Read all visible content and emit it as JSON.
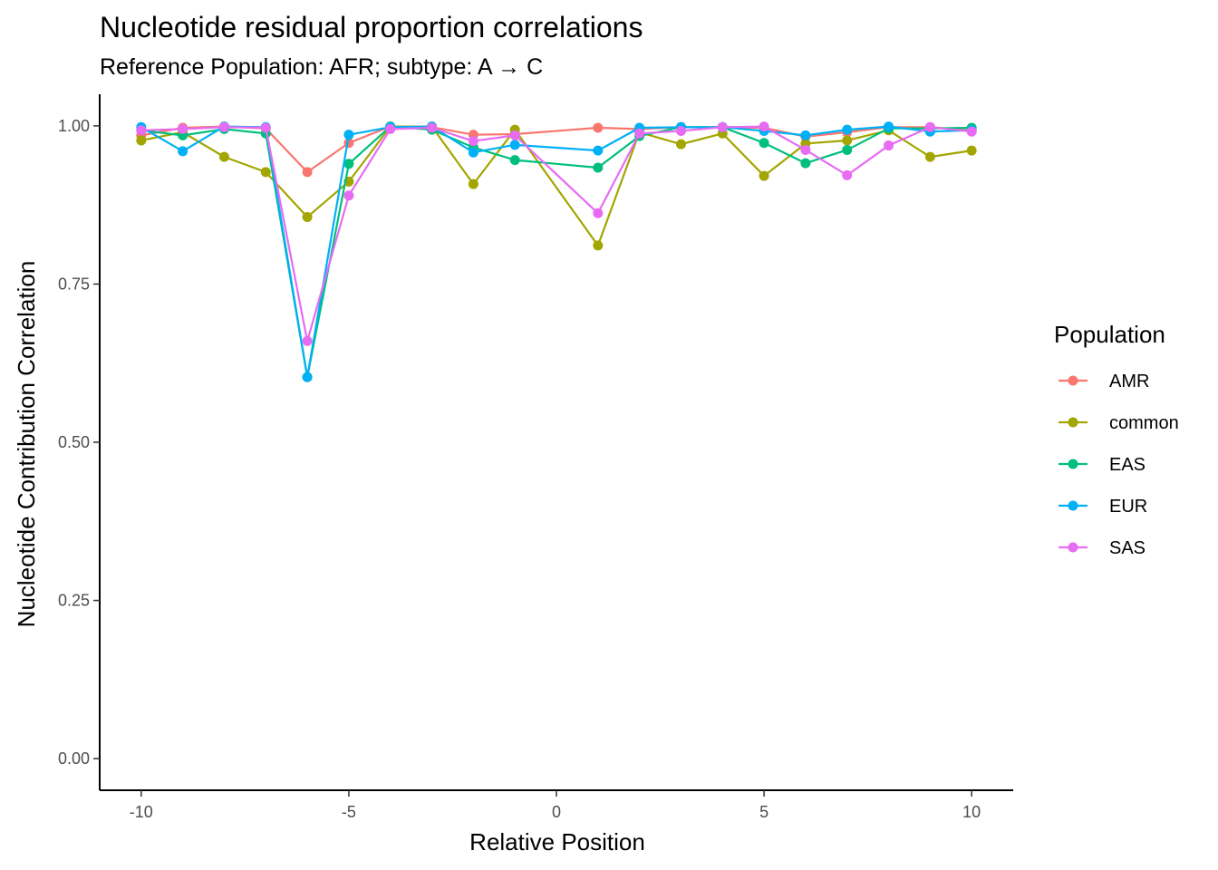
{
  "chart_data": {
    "type": "line",
    "title": "Nucleotide residual proportion correlations",
    "subtitle": "Reference Population: AFR; subtype: A → C",
    "xlabel": "Relative Position",
    "ylabel": "Nucleotide Contribution Correlation",
    "xlim": [
      -11,
      11
    ],
    "ylim": [
      -0.05,
      1.05
    ],
    "x_ticks": [
      -10,
      -5,
      0,
      5,
      10
    ],
    "x_tick_labels": [
      "-10",
      "-5",
      "0",
      "5",
      "10"
    ],
    "y_ticks": [
      0,
      0.25,
      0.5,
      0.75,
      1.0
    ],
    "y_tick_labels": [
      "0.00",
      "0.25",
      "0.50",
      "0.75",
      "1.00"
    ],
    "grid": false,
    "legend": {
      "title": "Population",
      "position": "right"
    },
    "x": [
      -10,
      -9,
      -8,
      -7,
      -6,
      -5,
      -4,
      -3,
      -2,
      -1,
      1,
      2,
      3,
      4,
      5,
      6,
      7,
      8,
      9,
      10
    ],
    "series": [
      {
        "name": "AMR",
        "color": "#F8766D",
        "values": [
          0.985,
          0.997,
          0.999,
          0.996,
          0.927,
          0.973,
          0.999,
          0.998,
          0.986,
          0.987,
          0.997,
          0.995,
          0.998,
          0.998,
          0.997,
          0.983,
          0.99,
          0.998,
          0.998,
          0.993
        ]
      },
      {
        "name": "common",
        "color": "#A3A500",
        "values": [
          0.977,
          0.99,
          0.951,
          0.927,
          0.856,
          0.912,
          0.999,
          0.999,
          0.908,
          0.994,
          0.811,
          0.99,
          0.971,
          0.988,
          0.921,
          0.972,
          0.977,
          0.993,
          0.951,
          0.961
        ]
      },
      {
        "name": "EAS",
        "color": "#00BF7D",
        "values": [
          0.993,
          0.985,
          0.995,
          0.988,
          0.603,
          0.94,
          0.999,
          0.994,
          0.966,
          0.946,
          0.934,
          0.984,
          0.998,
          0.998,
          0.973,
          0.941,
          0.962,
          0.996,
          0.996,
          0.997
        ]
      },
      {
        "name": "EUR",
        "color": "#00B0F6",
        "values": [
          0.998,
          0.96,
          0.999,
          0.998,
          0.603,
          0.986,
          0.998,
          0.999,
          0.958,
          0.97,
          0.961,
          0.997,
          0.998,
          0.998,
          0.992,
          0.985,
          0.994,
          0.999,
          0.991,
          0.993
        ]
      },
      {
        "name": "SAS",
        "color": "#E76BF3",
        "values": [
          0.993,
          0.995,
          0.998,
          0.997,
          0.66,
          0.89,
          0.995,
          0.997,
          0.976,
          0.985,
          0.862,
          0.988,
          0.992,
          0.998,
          0.999,
          0.962,
          0.922,
          0.969,
          0.998,
          0.991
        ]
      }
    ]
  }
}
